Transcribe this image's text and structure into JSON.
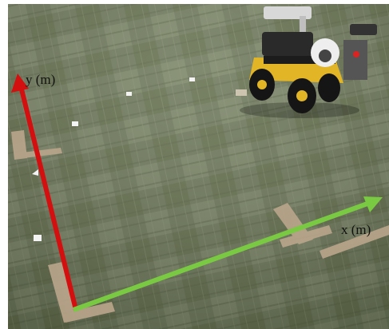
{
  "labels": {
    "y_axis": "y (m)",
    "x_axis": "x (m)"
  }
}
